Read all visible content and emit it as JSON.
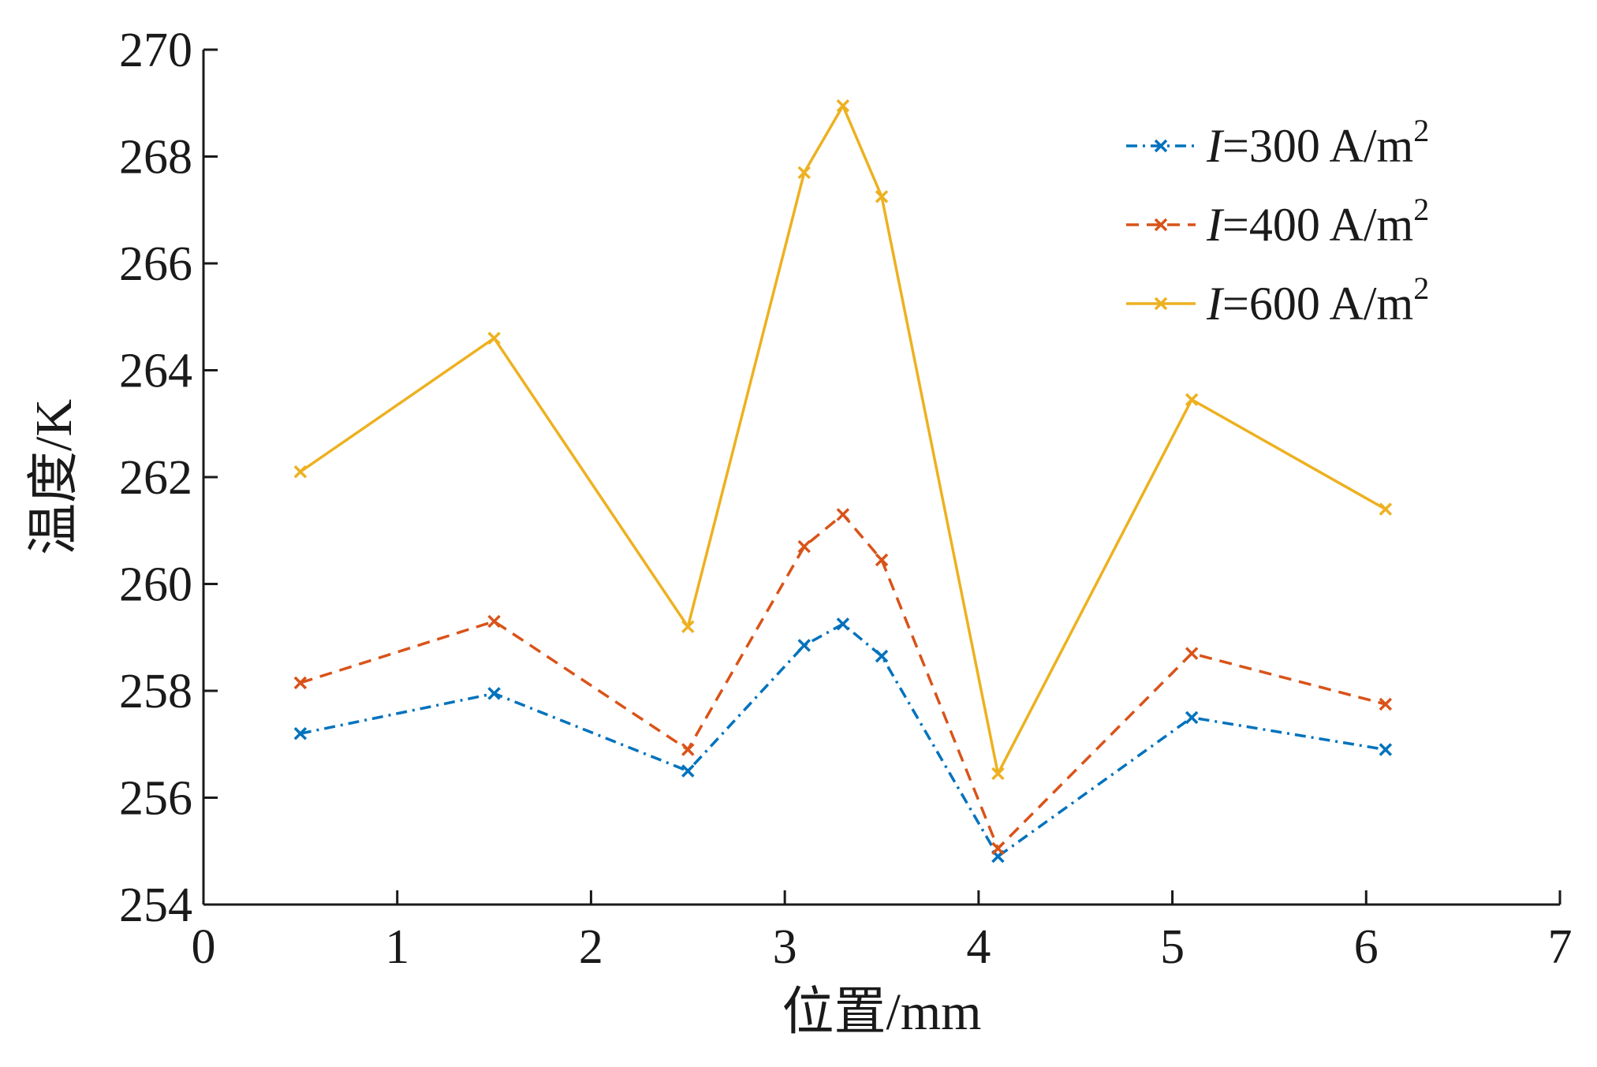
{
  "chart_data": {
    "type": "line",
    "xlabel": "位置/mm",
    "ylabel": "温度/K",
    "xlim": [
      0,
      7
    ],
    "ylim": [
      254,
      270
    ],
    "xticks": [
      "0",
      "1",
      "2",
      "3",
      "4",
      "5",
      "6",
      "7"
    ],
    "yticks": [
      "254",
      "256",
      "258",
      "260",
      "262",
      "264",
      "266",
      "268",
      "270"
    ],
    "grid": false,
    "legend_position": "top-right",
    "x": [
      0.5,
      1.5,
      2.5,
      3.1,
      3.3,
      3.5,
      4.1,
      5.1,
      6.1
    ],
    "series": [
      {
        "name": "I=300 A/m2",
        "legend_prefix": "I",
        "legend_middle": "=300 A/m",
        "legend_sup": "2",
        "color": "#0072BD",
        "line_style": "dash-dot",
        "marker": "x",
        "values": [
          257.2,
          257.95,
          256.5,
          258.85,
          259.25,
          258.65,
          254.9,
          257.5,
          256.9
        ]
      },
      {
        "name": "I=400 A/m2",
        "legend_prefix": "I",
        "legend_middle": "=400 A/m",
        "legend_sup": "2",
        "color": "#D95319",
        "line_style": "dashed",
        "marker": "x",
        "values": [
          258.15,
          259.3,
          256.9,
          260.7,
          261.3,
          260.45,
          255.05,
          258.7,
          257.75
        ]
      },
      {
        "name": "I=600 A/m2",
        "legend_prefix": "I",
        "legend_middle": "=600 A/m",
        "legend_sup": "2",
        "color": "#EDB120",
        "line_style": "solid",
        "marker": "x",
        "values": [
          262.1,
          264.6,
          259.2,
          267.7,
          268.95,
          267.25,
          256.45,
          263.45,
          261.4
        ]
      }
    ]
  }
}
